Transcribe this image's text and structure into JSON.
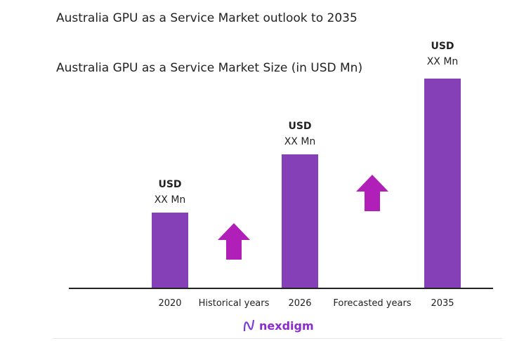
{
  "chart_data": {
    "type": "bar",
    "title": "Australia GPU as a Service Market outlook to 2035",
    "subtitle": "Australia GPU as a Service Market Size (in USD Mn)",
    "categories": [
      "2020",
      "2026",
      "2035"
    ],
    "data_labels": [
      {
        "unit": "USD",
        "value": "XX Mn"
      },
      {
        "unit": "USD",
        "value": "XX Mn"
      },
      {
        "unit": "USD",
        "value": "XX Mn"
      }
    ],
    "period_labels": [
      "Historical years",
      "Forecasted years"
    ],
    "grid": false,
    "colors": {
      "bar": "#8540b8",
      "arrow": "#b020b8"
    }
  },
  "brand": {
    "logo_text": "nexdigm"
  }
}
